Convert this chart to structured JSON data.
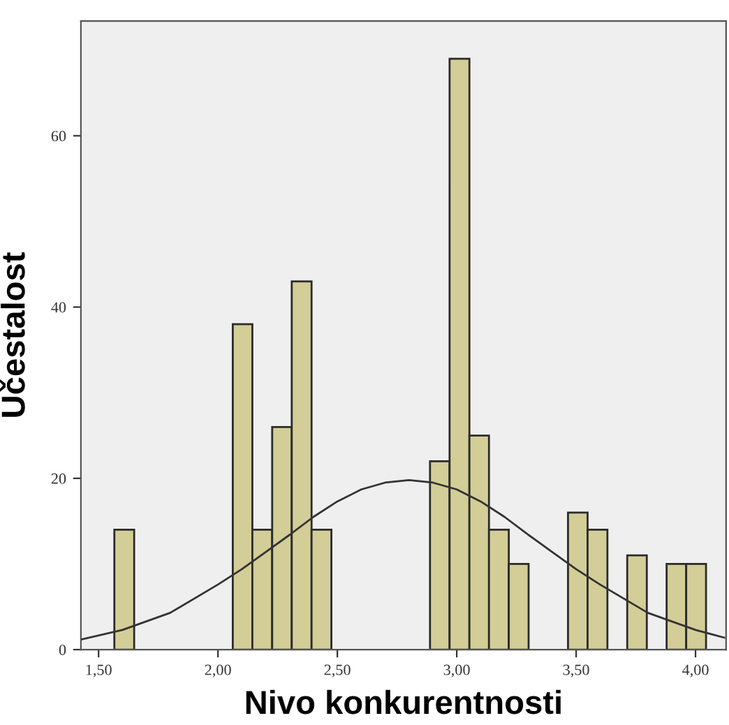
{
  "chart_data": {
    "type": "histogram",
    "xlabel": "Nivo konkurentnosti",
    "ylabel": "Učestalost",
    "bins": [
      1.566,
      1.649,
      1.731,
      1.814,
      1.896,
      1.979,
      2.062,
      2.144,
      2.227,
      2.309,
      2.392,
      2.475,
      2.557,
      2.64,
      2.722,
      2.805,
      2.888,
      2.97,
      3.053,
      3.135,
      3.218,
      3.301,
      3.383,
      3.466,
      3.548,
      3.631,
      3.714,
      3.796,
      3.879,
      3.961,
      4.044
    ],
    "values": [
      14,
      0,
      0,
      0,
      0,
      0,
      38,
      14,
      26,
      43,
      14,
      0,
      0,
      0,
      0,
      0,
      22,
      69,
      25,
      14,
      10,
      0,
      0,
      16,
      14,
      0,
      11,
      0,
      10,
      10
    ],
    "color": "#d3ce97",
    "series": [
      {
        "type": "line",
        "color": "#333333",
        "x": [
          1.43,
          1.6,
          1.8,
          2.0,
          2.1,
          2.2,
          2.3,
          2.4,
          2.5,
          2.6,
          2.7,
          2.8,
          2.9,
          3.0,
          3.1,
          3.2,
          3.3,
          3.4,
          3.5,
          3.6,
          3.8,
          4.0,
          4.12
        ],
        "values": [
          1.2,
          2.3,
          4.3,
          7.6,
          9.4,
          11.4,
          13.4,
          15.5,
          17.3,
          18.7,
          19.5,
          19.8,
          19.5,
          18.7,
          17.3,
          15.5,
          13.4,
          11.4,
          9.4,
          7.6,
          4.3,
          2.3,
          1.4
        ]
      }
    ],
    "xlim": [
      1.426,
      4.128
    ],
    "ylim": [
      0,
      73.4
    ],
    "xticks": [
      {
        "value": 1.5,
        "label": "1,50"
      },
      {
        "value": 2.0,
        "label": "2,00"
      },
      {
        "value": 2.5,
        "label": "2,50"
      },
      {
        "value": 3.0,
        "label": "3,00"
      },
      {
        "value": 3.5,
        "label": "3,50"
      },
      {
        "value": 4.0,
        "label": "4,00"
      }
    ],
    "yticks": [
      0,
      20,
      40,
      60
    ]
  }
}
